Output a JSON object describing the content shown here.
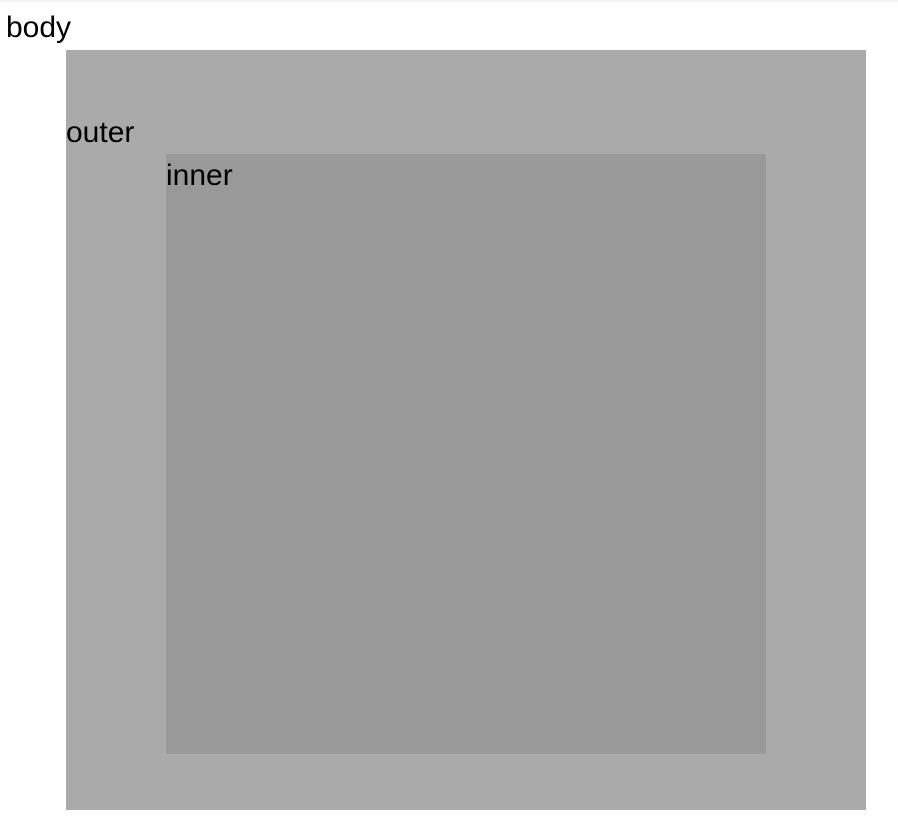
{
  "body_label": "body",
  "outer": {
    "label": "outer",
    "color": "#aaaaaa"
  },
  "inner": {
    "label": "inner",
    "color": "#999999"
  }
}
